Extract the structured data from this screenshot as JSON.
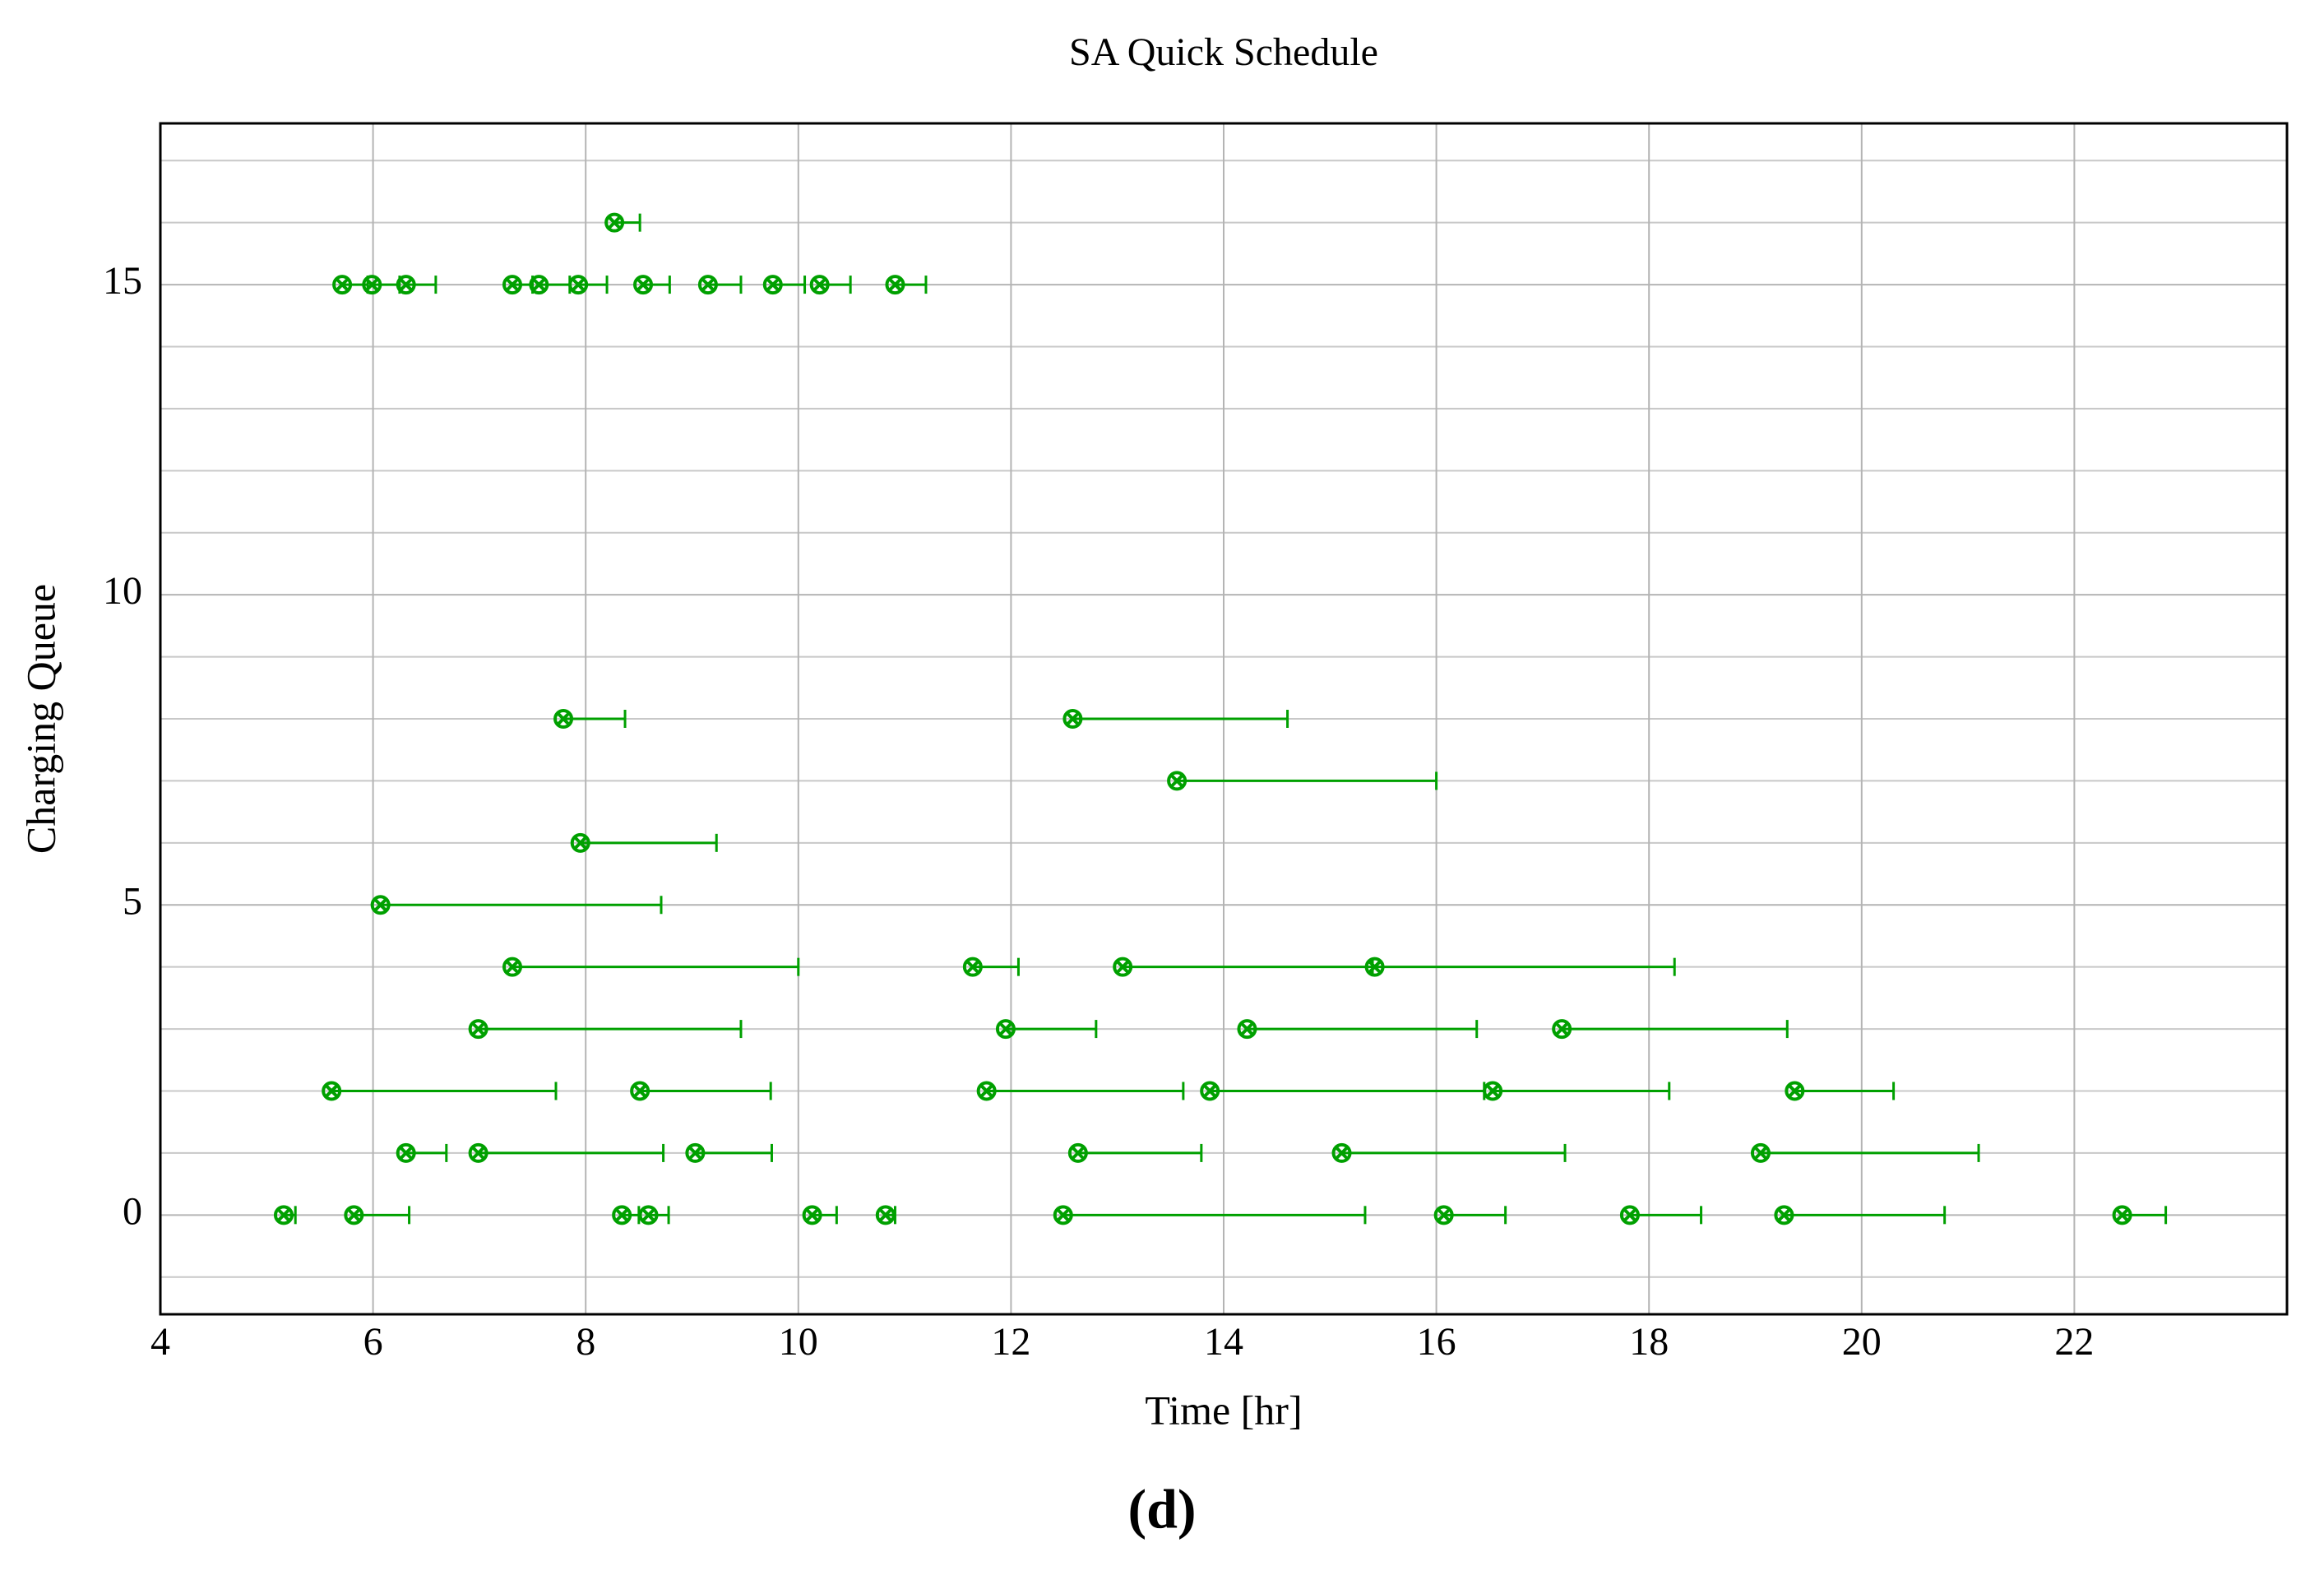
{
  "chart_data": {
    "type": "interval",
    "title": "SA Quick Schedule",
    "x_label": "Time [hr]",
    "y_label": "Charging Queue",
    "caption": "(d)",
    "xlim": [
      4,
      24
    ],
    "xticks": [
      4,
      6,
      8,
      10,
      12,
      14,
      16,
      18,
      20,
      22
    ],
    "ylim": [
      -1.6,
      17.6
    ],
    "yticks": [
      0,
      5,
      10,
      15
    ],
    "minor_yticks": [
      -1,
      1,
      2,
      3,
      4,
      6,
      7,
      8,
      9,
      11,
      12,
      13,
      14,
      16,
      17
    ],
    "grid": true,
    "series": [
      {
        "color": "#00a000",
        "values": [
          16,
          15,
          15,
          15,
          15,
          15,
          15,
          15,
          15,
          15,
          15,
          15,
          8,
          8,
          7,
          6,
          5,
          4,
          4,
          4,
          4,
          3,
          3,
          3,
          3,
          2,
          2,
          2,
          2,
          2,
          2,
          1,
          1,
          1,
          1,
          1,
          1,
          0,
          0,
          0,
          0,
          0,
          0,
          0,
          0,
          0,
          0,
          0
        ],
        "x": [
          8.27,
          5.71,
          5.99,
          6.31,
          7.31,
          7.56,
          7.93,
          8.54,
          9.15,
          9.76,
          10.2,
          10.91,
          7.79,
          12.58,
          13.56,
          7.95,
          6.07,
          7.31,
          11.64,
          13.05,
          15.42,
          6.99,
          11.95,
          14.22,
          17.18,
          5.61,
          8.51,
          11.77,
          13.87,
          16.53,
          19.37,
          6.31,
          6.99,
          9.03,
          12.63,
          15.11,
          19.05,
          5.16,
          5.82,
          8.34,
          8.59,
          10.13,
          10.82,
          12.49,
          16.07,
          17.82,
          19.27,
          22.45
        ],
        "x_end": [
          8.51,
          5.95,
          6.25,
          6.59,
          7.5,
          7.85,
          8.2,
          8.79,
          9.46,
          10.06,
          10.49,
          11.2,
          8.37,
          14.6,
          16.0,
          9.23,
          8.71,
          10.0,
          12.07,
          15.4,
          18.24,
          9.46,
          12.8,
          16.38,
          19.3,
          7.72,
          9.74,
          13.62,
          16.45,
          18.19,
          20.3,
          6.69,
          8.73,
          9.75,
          13.79,
          17.21,
          21.1,
          5.27,
          6.34,
          8.5,
          8.78,
          10.36,
          10.91,
          15.33,
          16.65,
          18.49,
          20.78,
          22.86
        ]
      }
    ]
  }
}
